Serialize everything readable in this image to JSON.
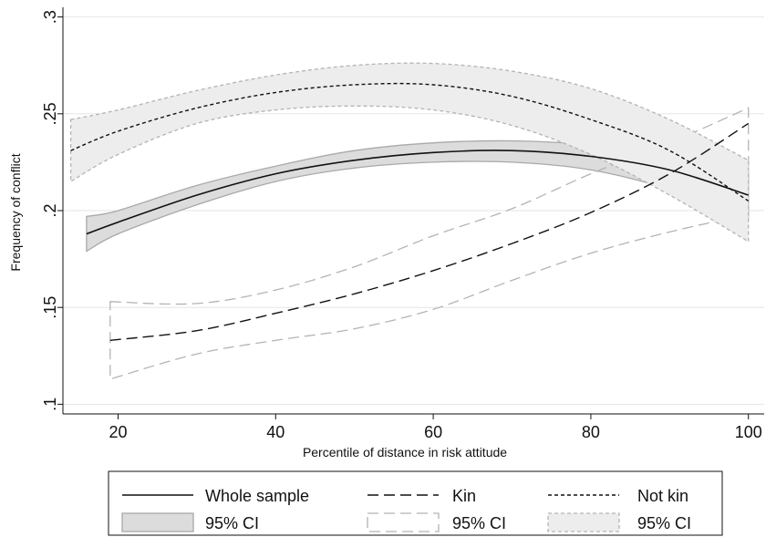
{
  "chart_data": {
    "type": "line",
    "title": "",
    "xlabel": "Percentile of distance in risk attitude",
    "ylabel": "Frequency of conflict",
    "xlim": [
      13,
      102
    ],
    "ylim": [
      0.095,
      0.305
    ],
    "x_ticks": [
      20,
      40,
      60,
      80,
      100
    ],
    "x_tick_labels": [
      "20",
      "40",
      "60",
      "80",
      "100"
    ],
    "y_ticks": [
      0.1,
      0.15,
      0.2,
      0.25,
      0.3
    ],
    "y_tick_labels": [
      ".1",
      ".15",
      ".2",
      ".25",
      ".3"
    ],
    "grid": "horizontal",
    "legend_position": "bottom",
    "series": [
      {
        "name": "Whole sample",
        "style": "solid",
        "color": "#111111",
        "x": [
          16,
          20,
          30,
          40,
          50,
          60,
          70,
          80,
          90,
          100
        ],
        "y": [
          0.188,
          0.194,
          0.208,
          0.219,
          0.226,
          0.23,
          0.231,
          0.228,
          0.221,
          0.208
        ],
        "ci_lower": [
          0.179,
          0.188,
          0.203,
          0.215,
          0.222,
          0.225,
          0.225,
          0.221,
          0.211,
          0.196
        ],
        "ci_upper": [
          0.197,
          0.2,
          0.213,
          0.223,
          0.231,
          0.235,
          0.236,
          0.234,
          0.229,
          0.22
        ],
        "ci_name": "95% CI",
        "ci_fill": "#dcdcdc",
        "ci_stroke": "#a9a9a9",
        "ci_style": "solid"
      },
      {
        "name": "Kin",
        "style": "dashed",
        "color": "#111111",
        "x": [
          19,
          30,
          40,
          50,
          60,
          70,
          80,
          90,
          100
        ],
        "y": [
          0.133,
          0.138,
          0.147,
          0.157,
          0.169,
          0.183,
          0.199,
          0.219,
          0.245
        ],
        "ci_lower": [
          0.113,
          0.126,
          0.133,
          0.139,
          0.149,
          0.164,
          0.178,
          0.189,
          0.198
        ],
        "ci_upper": [
          0.153,
          0.152,
          0.159,
          0.171,
          0.187,
          0.201,
          0.219,
          0.235,
          0.253
        ],
        "ci_name": "95% CI",
        "ci_fill": "none",
        "ci_stroke": "#b4b4b4",
        "ci_style": "dashed"
      },
      {
        "name": "Not kin",
        "style": "dotted",
        "color": "#111111",
        "x": [
          14,
          20,
          30,
          40,
          50,
          60,
          70,
          80,
          90,
          100
        ],
        "y": [
          0.231,
          0.241,
          0.253,
          0.261,
          0.265,
          0.265,
          0.259,
          0.247,
          0.231,
          0.205
        ],
        "ci_lower": [
          0.215,
          0.229,
          0.245,
          0.252,
          0.254,
          0.252,
          0.244,
          0.229,
          0.208,
          0.184
        ],
        "ci_upper": [
          0.247,
          0.252,
          0.262,
          0.27,
          0.275,
          0.276,
          0.272,
          0.263,
          0.247,
          0.226
        ],
        "ci_name": "95% CI",
        "ci_fill": "#ededed",
        "ci_stroke": "#b4b4b4",
        "ci_style": "dotted"
      }
    ]
  }
}
